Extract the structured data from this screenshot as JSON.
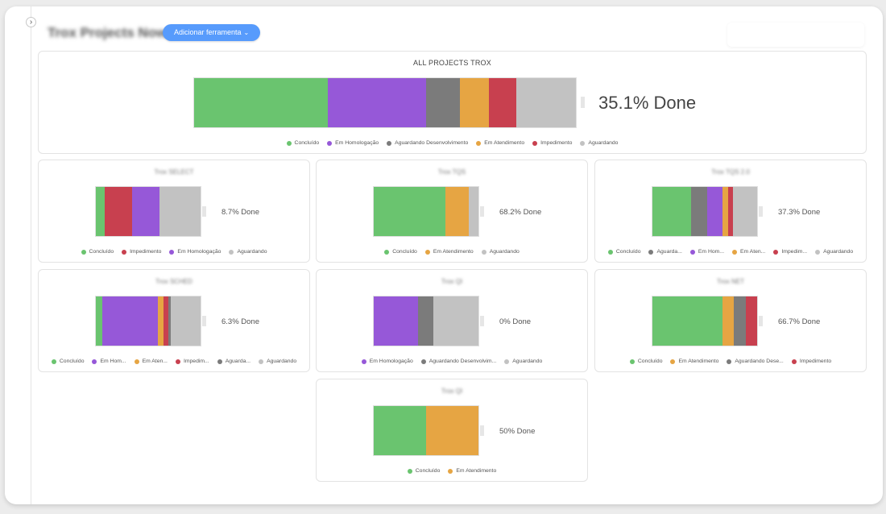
{
  "board": {
    "title": "Trox Projects Now",
    "add_button_label": "Adicionar ferramenta",
    "add_button_caret": "⌄",
    "toggle_glyph": "›"
  },
  "colors": {
    "Concluído": "#6ac46f",
    "Em Homologação": "#9658d8",
    "Aguardando Desenvolvimento": "#7b7b7b",
    "Em Atendimento": "#e6a543",
    "Impedimento": "#c8404f",
    "Aguardando": "#c2c2c2"
  },
  "main_card": {
    "title": "ALL PROJECTS TROX",
    "done_label": "35.1% Done",
    "segments": [
      {
        "status": "Concluído",
        "fraction": 0.351
      },
      {
        "status": "Em Homologação",
        "fraction": 0.257
      },
      {
        "status": "Aguardando Desenvolvimento",
        "fraction": 0.088
      },
      {
        "status": "Em Atendimento",
        "fraction": 0.077
      },
      {
        "status": "Impedimento",
        "fraction": 0.071
      },
      {
        "status": "Aguardando",
        "fraction": 0.156
      }
    ],
    "legend": [
      "Concluído",
      "Em Homologação",
      "Aguardando Desenvolvimento",
      "Em Atendimento",
      "Impedimento",
      "Aguardando"
    ]
  },
  "cards": [
    {
      "title": "Trox SELECT",
      "done_label": "8.7% Done",
      "segments": [
        {
          "status": "Concluído",
          "fraction": 0.087
        },
        {
          "status": "Impedimento",
          "fraction": 0.261
        },
        {
          "status": "Em Homologação",
          "fraction": 0.261
        },
        {
          "status": "Aguardando",
          "fraction": 0.391
        }
      ],
      "legend": [
        "Concluído",
        "Impedimento",
        "Em Homologação",
        "Aguardando"
      ]
    },
    {
      "title": "Trox TQS",
      "done_label": "68.2% Done",
      "segments": [
        {
          "status": "Concluído",
          "fraction": 0.682
        },
        {
          "status": "Em Atendimento",
          "fraction": 0.227
        },
        {
          "status": "Aguardando",
          "fraction": 0.091
        }
      ],
      "legend": [
        "Concluído",
        "Em Atendimento",
        "Aguardando"
      ]
    },
    {
      "title": "Trox TQS 2.0",
      "done_label": "37.3% Done",
      "segments": [
        {
          "status": "Concluído",
          "fraction": 0.373
        },
        {
          "status": "Aguardando Desenvolvimento",
          "fraction": 0.152
        },
        {
          "status": "Em Homologação",
          "fraction": 0.152
        },
        {
          "status": "Em Atendimento",
          "fraction": 0.053
        },
        {
          "status": "Impedimento",
          "fraction": 0.047
        },
        {
          "status": "Aguardando",
          "fraction": 0.233
        }
      ],
      "legend": [
        "Concluído",
        "Aguarda...",
        "Em Hom...",
        "Em Aten...",
        "Impedim...",
        "Aguardando"
      ]
    },
    {
      "title": "Trox SCHED",
      "done_label": "6.3% Done",
      "segments": [
        {
          "status": "Concluído",
          "fraction": 0.063
        },
        {
          "status": "Em Homologação",
          "fraction": 0.53
        },
        {
          "status": "Em Atendimento",
          "fraction": 0.05
        },
        {
          "status": "Impedimento",
          "fraction": 0.05
        },
        {
          "status": "Aguardando Desenvolvimento",
          "fraction": 0.025
        },
        {
          "status": "Aguardando",
          "fraction": 0.282
        }
      ],
      "legend": [
        "Concluído",
        "Em Hom...",
        "Em Aten...",
        "Impedim...",
        "Aguarda...",
        "Aguardando"
      ]
    },
    {
      "title": "Trox QI",
      "done_label": "0% Done",
      "segments": [
        {
          "status": "Em Homologação",
          "fraction": 0.42
        },
        {
          "status": "Aguardando Desenvolvimento",
          "fraction": 0.15
        },
        {
          "status": "Aguardando",
          "fraction": 0.43
        }
      ],
      "legend": [
        "Em Homologação",
        "Aguardando Desenvolvim...",
        "Aguardando"
      ]
    },
    {
      "title": "Trox NET",
      "done_label": "66.7% Done",
      "segments": [
        {
          "status": "Concluído",
          "fraction": 0.667
        },
        {
          "status": "Em Atendimento",
          "fraction": 0.111
        },
        {
          "status": "Aguardando Desenvolvimento",
          "fraction": 0.111
        },
        {
          "status": "Impedimento",
          "fraction": 0.111
        }
      ],
      "legend": [
        "Concluído",
        "Em Atendimento",
        "Aguardando Dese...",
        "Impedimento"
      ]
    },
    {
      "title": "Trox QI",
      "done_label": "50% Done",
      "segments": [
        {
          "status": "Concluído",
          "fraction": 0.5
        },
        {
          "status": "Em Atendimento",
          "fraction": 0.5
        }
      ],
      "legend": [
        "Concluído",
        "Em Atendimento"
      ]
    }
  ],
  "legend_colors": {
    "Aguarda...": "#7b7b7b",
    "Em Hom...": "#9658d8",
    "Em Aten...": "#e6a543",
    "Impedim...": "#c8404f",
    "Aguardando Desenvolvim...": "#7b7b7b",
    "Aguardando Dese...": "#7b7b7b"
  }
}
